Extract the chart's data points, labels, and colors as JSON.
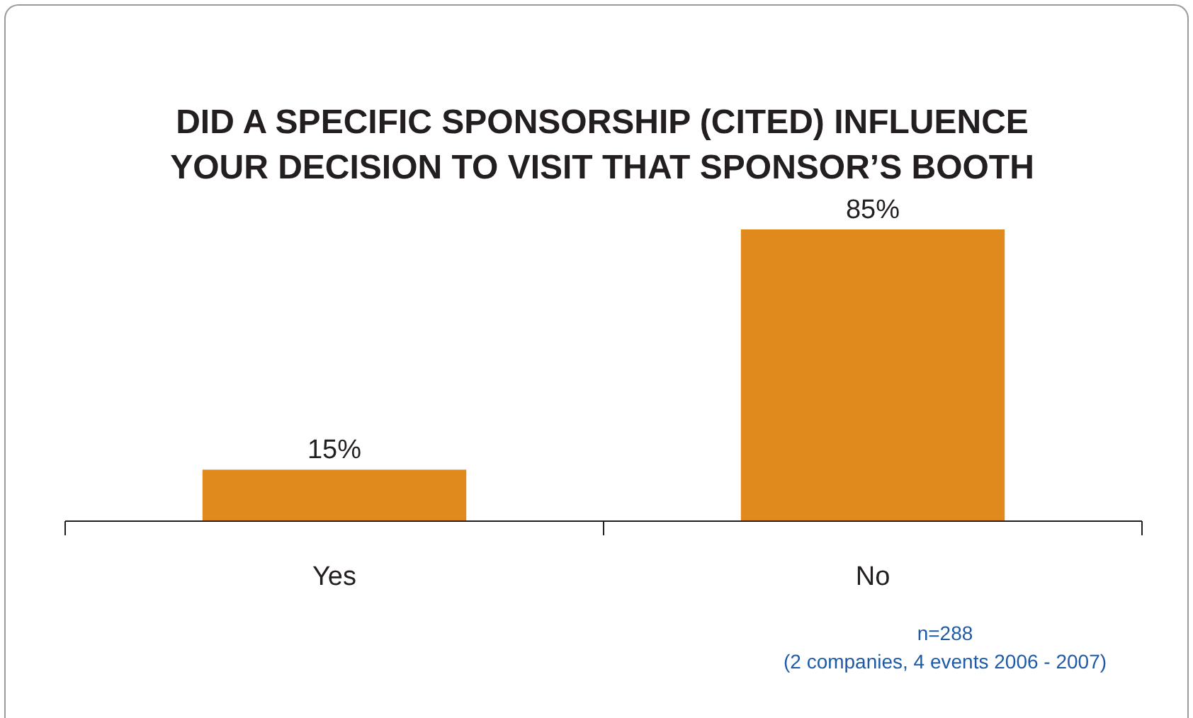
{
  "chart_data": {
    "type": "bar",
    "title": "DID A SPECIFIC SPONSORSHIP (CITED) INFLUENCE YOUR DECISION TO VISIT THAT SPONSOR’S BOOTH",
    "categories": [
      "Yes",
      "No"
    ],
    "values": [
      15,
      85
    ],
    "value_labels": [
      "15%",
      "85%"
    ],
    "color": "#e08a1e",
    "annotations": [
      "n=288",
      "(2 companies, 4 events 2006 - 2007)"
    ]
  }
}
